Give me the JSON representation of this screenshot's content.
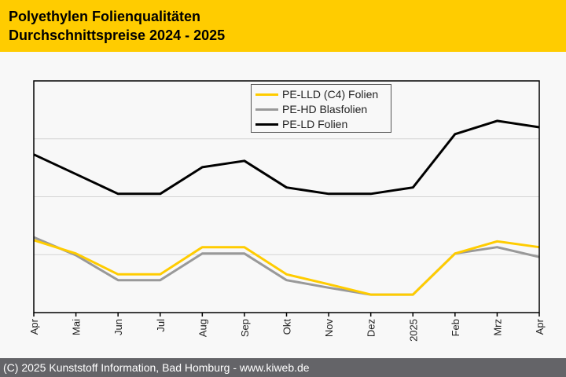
{
  "header": {
    "title_line1": "Polyethylen Folienqualitäten",
    "title_line2": "Durchschnittspreise 2024 - 2025",
    "background": "#ffcc00"
  },
  "footer": {
    "text": "(C) 2025 Kunststoff Information, Bad Homburg - www.kiweb.de"
  },
  "chart_data": {
    "type": "line",
    "title": "Polyethylen Folienqualitäten Durchschnittspreise 2024 - 2025",
    "xlabel": "",
    "ylabel": "",
    "y_axis_labels_shown": false,
    "y_units": "relative grid units (no y-axis labels shown)",
    "ylim": [
      0,
      4
    ],
    "grid": "horizontal",
    "legend_position": "top-center",
    "categories": [
      "Apr",
      "Mai",
      "Jun",
      "Jul",
      "Aug",
      "Sep",
      "Okt",
      "Nov",
      "Dez",
      "2025",
      "Feb",
      "Mrz",
      "Apr"
    ],
    "series": [
      {
        "name": "PE-LLD (C4) Folien",
        "color": "#ffcc00",
        "values": [
          1.25,
          1.02,
          0.66,
          0.66,
          1.13,
          1.13,
          0.66,
          0.49,
          0.31,
          0.31,
          1.02,
          1.23,
          1.13
        ]
      },
      {
        "name": "PE-HD Blasfolien",
        "color": "#999999",
        "values": [
          1.3,
          0.99,
          0.56,
          0.56,
          1.02,
          1.02,
          0.56,
          0.43,
          0.31,
          0.31,
          1.02,
          1.13,
          0.96
        ]
      },
      {
        "name": "PE-LD Folien",
        "color": "#000000",
        "values": [
          2.73,
          2.39,
          2.05,
          2.05,
          2.51,
          2.62,
          2.16,
          2.05,
          2.05,
          2.16,
          3.08,
          3.31,
          3.2
        ]
      }
    ]
  }
}
